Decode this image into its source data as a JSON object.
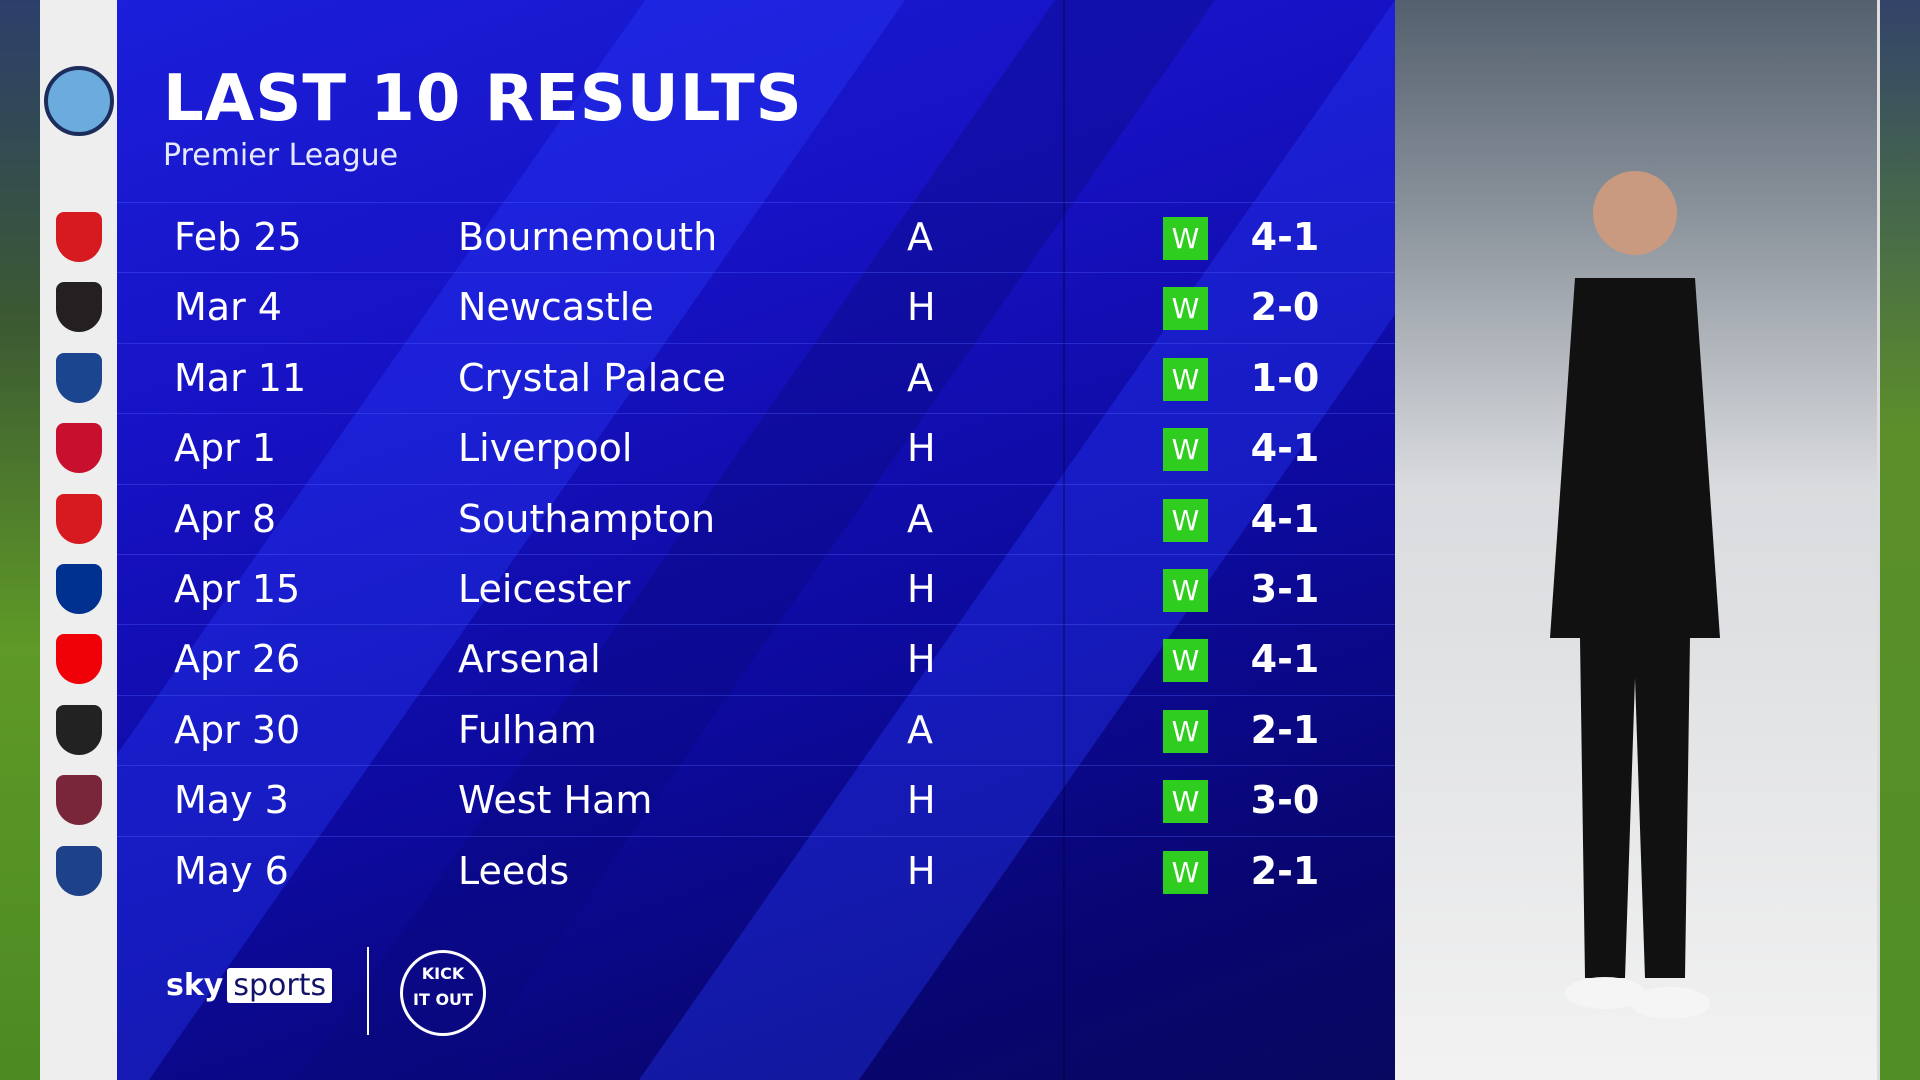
{
  "header": {
    "title": "LAST 10 RESULTS",
    "subtitle": "Premier League"
  },
  "team_crest": "manchester-city-crest",
  "colors": {
    "win": "#2fcd1f",
    "panel": "#1712c4"
  },
  "results": [
    {
      "date": "Feb 25",
      "opponent": "Bournemouth",
      "venue": "A",
      "result": "W",
      "score": "4-1",
      "crest_color": "#d71920"
    },
    {
      "date": "Mar 4",
      "opponent": "Newcastle",
      "venue": "H",
      "result": "W",
      "score": "2-0",
      "crest_color": "#241f20"
    },
    {
      "date": "Mar 11",
      "opponent": "Crystal Palace",
      "venue": "A",
      "result": "W",
      "score": "1-0",
      "crest_color": "#1b458f"
    },
    {
      "date": "Apr 1",
      "opponent": "Liverpool",
      "venue": "H",
      "result": "W",
      "score": "4-1",
      "crest_color": "#c8102e"
    },
    {
      "date": "Apr 8",
      "opponent": "Southampton",
      "venue": "A",
      "result": "W",
      "score": "4-1",
      "crest_color": "#d71920"
    },
    {
      "date": "Apr 15",
      "opponent": "Leicester",
      "venue": "H",
      "result": "W",
      "score": "3-1",
      "crest_color": "#003090"
    },
    {
      "date": "Apr 26",
      "opponent": "Arsenal",
      "venue": "H",
      "result": "W",
      "score": "4-1",
      "crest_color": "#ef0107"
    },
    {
      "date": "Apr 30",
      "opponent": "Fulham",
      "venue": "A",
      "result": "W",
      "score": "2-1",
      "crest_color": "#222222"
    },
    {
      "date": "May 3",
      "opponent": "West Ham",
      "venue": "H",
      "result": "W",
      "score": "3-0",
      "crest_color": "#7a263a"
    },
    {
      "date": "May 6",
      "opponent": "Leeds",
      "venue": "H",
      "result": "W",
      "score": "2-1",
      "crest_color": "#1d428a"
    }
  ],
  "footer": {
    "brand_sky": "sky",
    "brand_sports": "sports",
    "partner": "KICK IT OUT"
  }
}
